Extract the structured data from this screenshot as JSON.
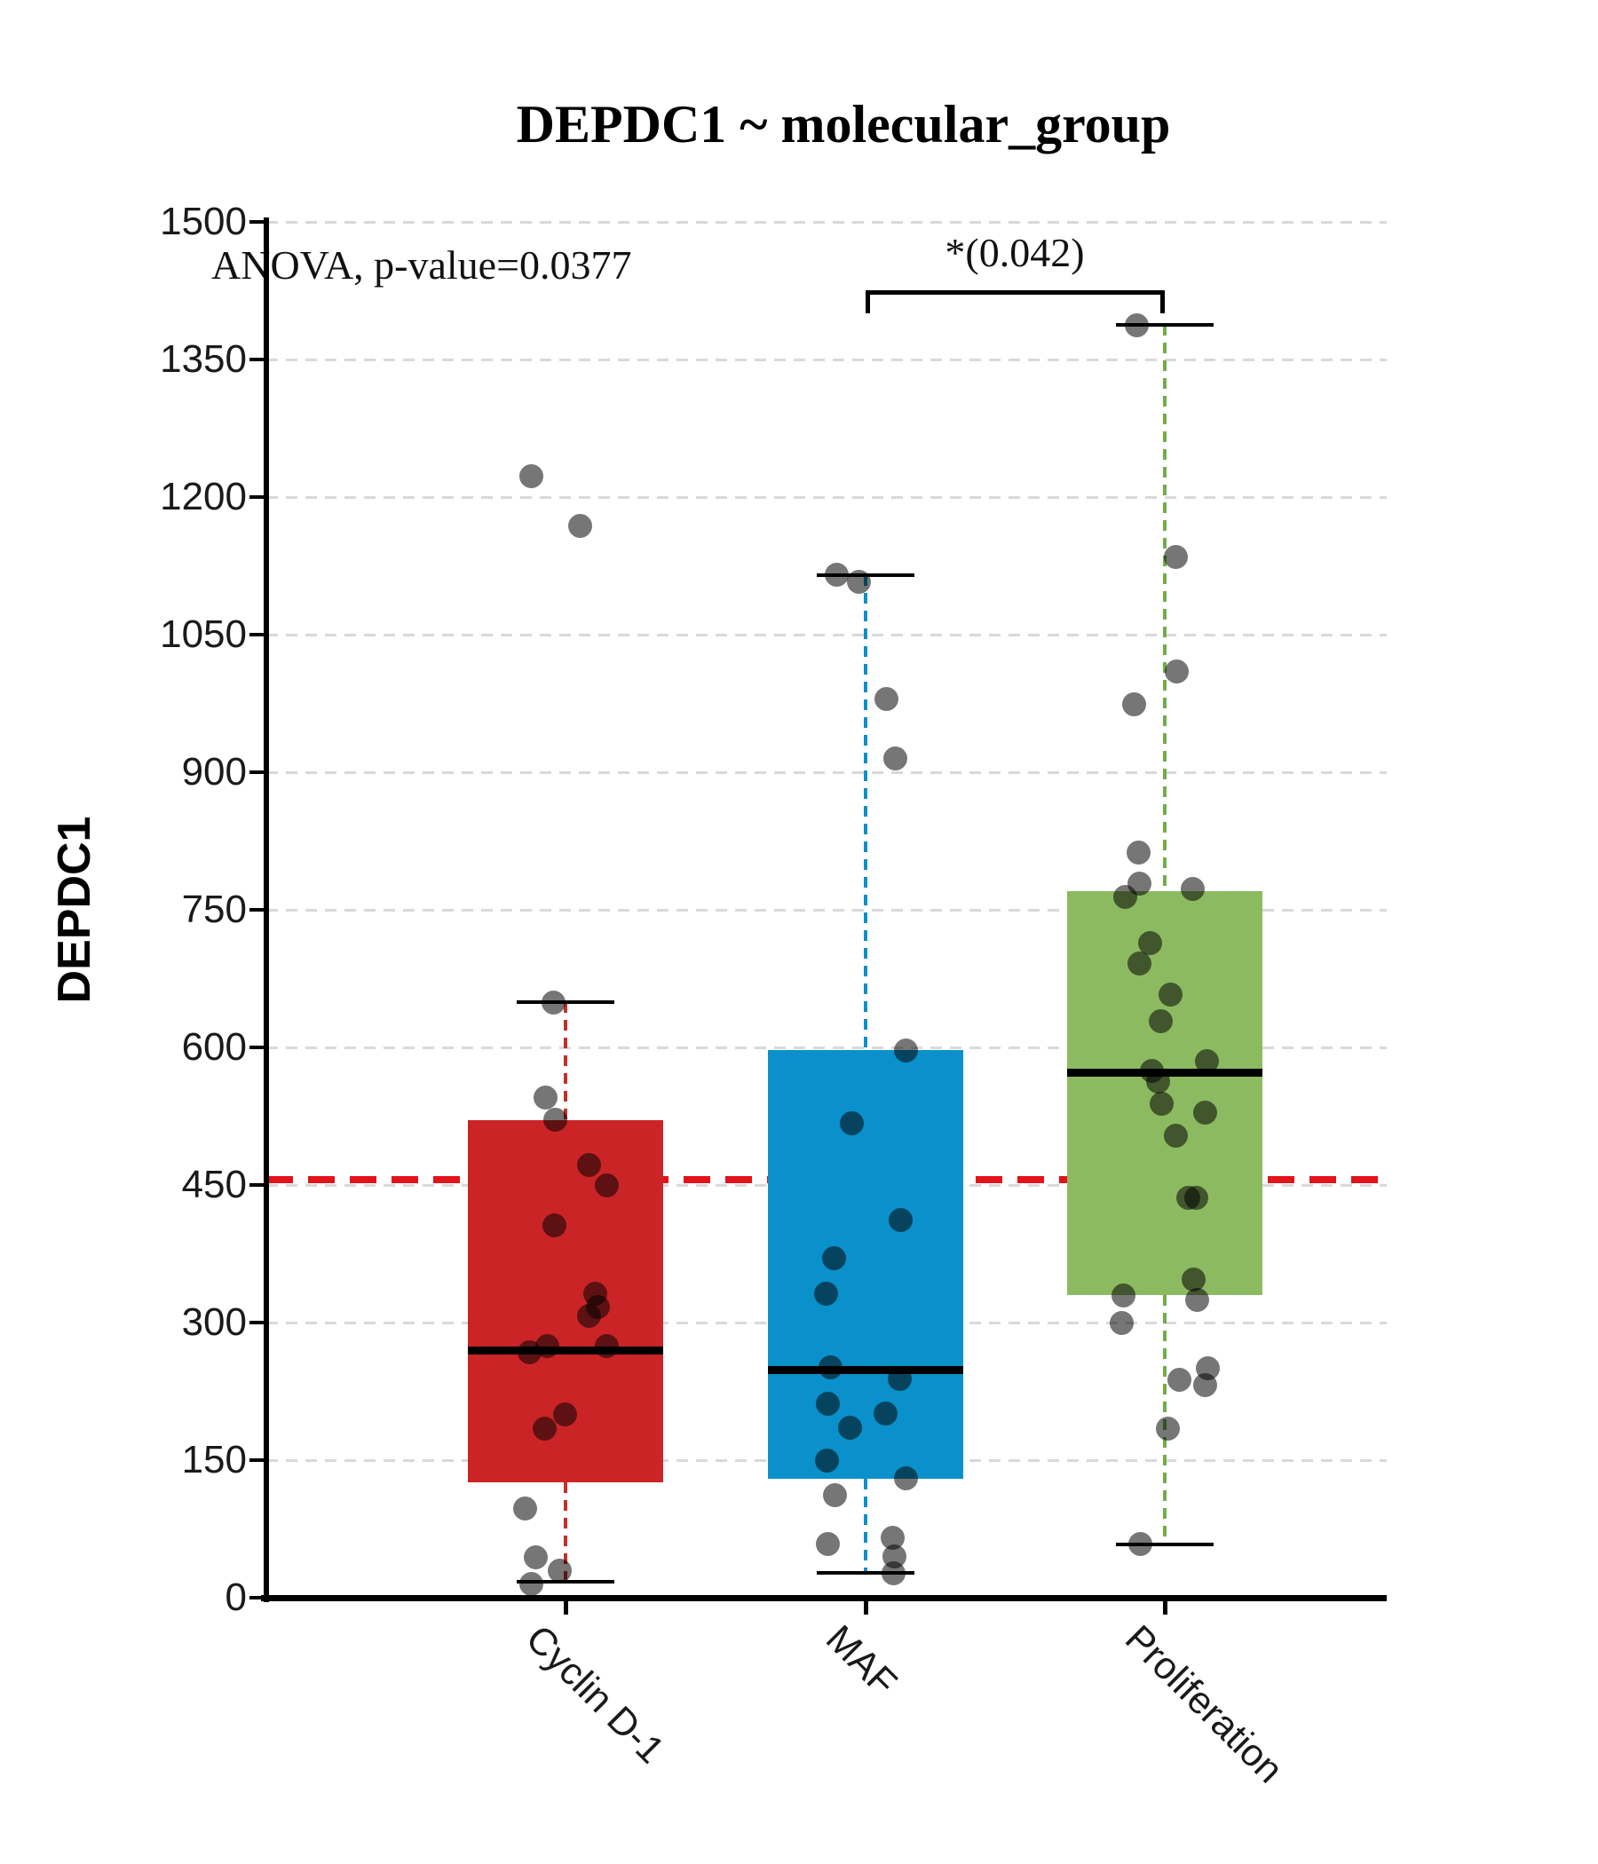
{
  "title": "DEPDC1 ~ molecular_group",
  "annotations": {
    "anova": "ANOVA, p-value=0.0377",
    "significance_label": "*(0.042)"
  },
  "y_axis": {
    "label": "DEPDC1",
    "ticks": [
      0,
      150,
      300,
      450,
      600,
      750,
      900,
      1050,
      1200,
      1350,
      1500
    ],
    "ylim": [
      0,
      1500
    ]
  },
  "reference_line": {
    "value": 456,
    "color": "#e3131b",
    "style": "dashed"
  },
  "chart_data": {
    "type": "box",
    "title": "DEPDC1 ~ molecular_group",
    "xlabel": "",
    "ylabel": "DEPDC1",
    "ylim": [
      0,
      1500
    ],
    "grid": "horizontal-dashed",
    "categories": [
      "Cyclin D-1",
      "MAF",
      "Proliferation"
    ],
    "groups": [
      {
        "name": "Cyclin D-1",
        "box_color": "#cb2427",
        "whisker_color": "#c62f28",
        "q1": 126,
        "median": 270,
        "q3": 521,
        "whisker_low": 17,
        "whisker_high": 649,
        "points": [
          [
            -39,
            1223
          ],
          [
            16,
            1169
          ],
          [
            -14,
            649
          ],
          [
            -23,
            545
          ],
          [
            -12,
            521
          ],
          [
            26,
            472
          ],
          [
            46,
            450
          ],
          [
            -13,
            406
          ],
          [
            33,
            331
          ],
          [
            36,
            317
          ],
          [
            26,
            307
          ],
          [
            -41,
            268
          ],
          [
            -21,
            274
          ],
          [
            46,
            274
          ],
          [
            -1,
            200
          ],
          [
            -24,
            184
          ],
          [
            -46,
            97
          ],
          [
            -34,
            44
          ],
          [
            -7,
            30
          ],
          [
            -39,
            15
          ]
        ]
      },
      {
        "name": "MAF",
        "box_color": "#0a90cb",
        "whisker_color": "#0a90cb",
        "q1": 130,
        "median": 248,
        "q3": 597,
        "whisker_low": 27,
        "whisker_high": 1115,
        "points": [
          [
            -33,
            1115
          ],
          [
            -8,
            1108
          ],
          [
            23,
            980
          ],
          [
            33,
            915
          ],
          [
            45,
            597
          ],
          [
            -16,
            517
          ],
          [
            39,
            412
          ],
          [
            -36,
            370
          ],
          [
            -45,
            331
          ],
          [
            -40,
            251
          ],
          [
            38,
            239
          ],
          [
            -43,
            211
          ],
          [
            22,
            201
          ],
          [
            -18,
            185
          ],
          [
            -44,
            150
          ],
          [
            45,
            130
          ],
          [
            -35,
            112
          ],
          [
            30,
            65
          ],
          [
            -43,
            59
          ],
          [
            32,
            45
          ],
          [
            31,
            27
          ]
        ]
      },
      {
        "name": "Proliferation",
        "box_color": "#8cba61",
        "whisker_color": "#6fae4a",
        "q1": 330,
        "median": 572,
        "q3": 770,
        "whisker_low": 58,
        "whisker_high": 1388,
        "points": [
          [
            -32,
            1387
          ],
          [
            12,
            1135
          ],
          [
            13,
            1010
          ],
          [
            -35,
            974
          ],
          [
            -30,
            812
          ],
          [
            -29,
            779
          ],
          [
            31,
            773
          ],
          [
            -45,
            764
          ],
          [
            -17,
            714
          ],
          [
            -29,
            691
          ],
          [
            6,
            658
          ],
          [
            -5,
            629
          ],
          [
            47,
            585
          ],
          [
            -15,
            574
          ],
          [
            -8,
            563
          ],
          [
            -4,
            539
          ],
          [
            45,
            529
          ],
          [
            12,
            504
          ],
          [
            26,
            436
          ],
          [
            35,
            436
          ],
          [
            32,
            347
          ],
          [
            -47,
            330
          ],
          [
            36,
            325
          ],
          [
            -49,
            300
          ],
          [
            48,
            250
          ],
          [
            16,
            238
          ],
          [
            45,
            232
          ],
          [
            3,
            184
          ],
          [
            -28,
            59
          ]
        ]
      }
    ],
    "significance": {
      "group_from": "MAF",
      "group_to": "Proliferation",
      "label": "*(0.042)"
    },
    "point_color": "#767676",
    "median_color": "#000000",
    "legend": "none"
  }
}
